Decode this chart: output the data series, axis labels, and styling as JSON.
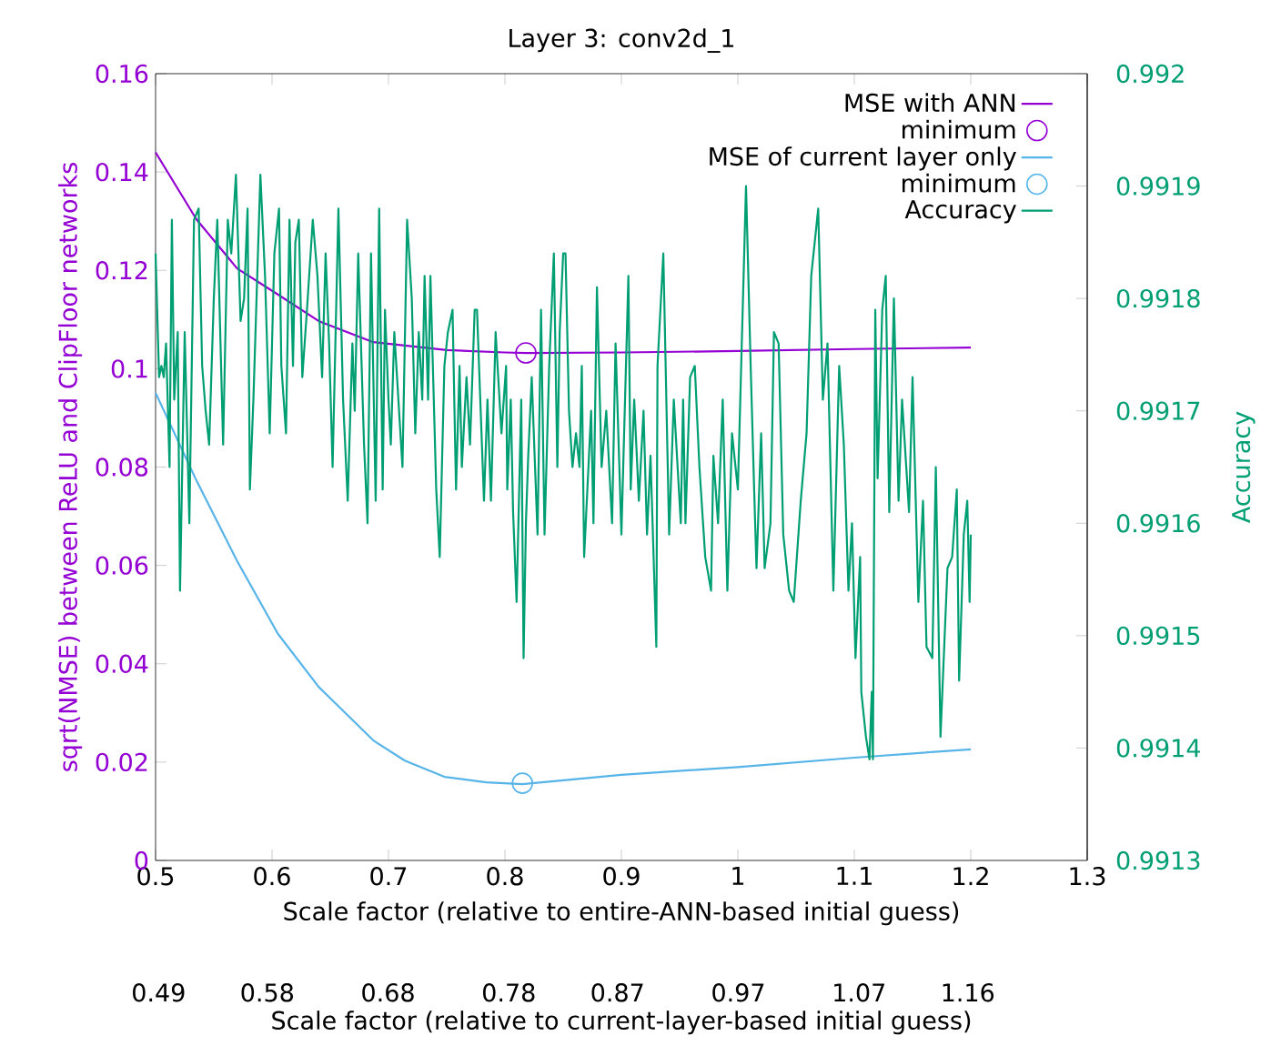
{
  "chart_data": {
    "type": "line",
    "title": "Layer 3: conv2d_1",
    "xlabel": "Scale factor (relative to entire-ANN-based initial guess)",
    "ylabel": "sqrt(NMSE) between ReLU and ClipFloor networks",
    "y2label": "Accuracy",
    "x2label": "Scale factor (relative to current-layer-based initial guess)",
    "xlim": [
      0.5,
      1.3
    ],
    "xticks": [
      0.5,
      0.6,
      0.7,
      0.8,
      0.9,
      1,
      1.1,
      1.2,
      1.3
    ],
    "ylim": [
      0,
      0.16
    ],
    "yticks": [
      0,
      0.02,
      0.04,
      0.06,
      0.08,
      0.1,
      0.12,
      0.14,
      0.16
    ],
    "y2lim": [
      0.9913,
      0.992
    ],
    "y2ticks": [
      0.9913,
      0.9914,
      0.9915,
      0.9916,
      0.9917,
      0.9918,
      0.9919,
      0.992
    ],
    "x2lim": [
      0.4875,
      1.2589
    ],
    "x2ticks": [
      0.49,
      0.58,
      0.68,
      0.78,
      0.87,
      0.97,
      1.07,
      1.16
    ],
    "legend": "top right",
    "grid": false,
    "marker": "none",
    "series": [
      {
        "name": "MSE with ANN",
        "color": "#9400d3",
        "x": [
          0.5,
          0.535,
          0.57,
          0.605,
          0.64,
          0.687,
          0.714,
          0.75,
          0.8,
          0.819,
          0.9,
          1.0,
          1.1,
          1.2
        ],
        "values": [
          0.144,
          0.1304,
          0.1204,
          0.1151,
          0.1097,
          0.1054,
          0.1047,
          0.1038,
          0.1033,
          0.1032,
          0.1033,
          0.1036,
          0.104,
          0.1043
        ]
      },
      {
        "name": "minimum",
        "type": "scatter",
        "marker": "circle",
        "color": "#9400d3",
        "x": [
          0.818
        ],
        "values": [
          0.1032
        ]
      },
      {
        "name": "MSE of current layer only",
        "color": "#56b4e9",
        "x": [
          0.5,
          0.535,
          0.57,
          0.605,
          0.64,
          0.687,
          0.714,
          0.748,
          0.784,
          0.815,
          0.9,
          1.0,
          1.1,
          1.2
        ],
        "values": [
          0.0951,
          0.0773,
          0.0609,
          0.0461,
          0.0353,
          0.0244,
          0.0203,
          0.017,
          0.0159,
          0.0155,
          0.0174,
          0.019,
          0.0209,
          0.0226
        ]
      },
      {
        "name": "minimum",
        "type": "scatter",
        "marker": "circle",
        "color": "#56b4e9",
        "x": [
          0.815
        ],
        "values": [
          0.0157
        ]
      },
      {
        "name": "Accuracy",
        "axis": "y2",
        "color": "#009e73",
        "x": [
          0.5,
          0.503,
          0.505,
          0.507,
          0.509,
          0.512,
          0.514,
          0.516,
          0.519,
          0.521,
          0.525,
          0.529,
          0.533,
          0.537,
          0.54,
          0.543,
          0.546,
          0.55,
          0.553,
          0.558,
          0.562,
          0.565,
          0.569,
          0.573,
          0.576,
          0.579,
          0.581,
          0.584,
          0.59,
          0.594,
          0.598,
          0.602,
          0.606,
          0.608,
          0.612,
          0.615,
          0.618,
          0.62,
          0.623,
          0.626,
          0.63,
          0.635,
          0.639,
          0.643,
          0.646,
          0.649,
          0.652,
          0.657,
          0.661,
          0.665,
          0.669,
          0.671,
          0.674,
          0.679,
          0.682,
          0.685,
          0.689,
          0.692,
          0.695,
          0.697,
          0.7,
          0.702,
          0.705,
          0.712,
          0.716,
          0.72,
          0.723,
          0.726,
          0.729,
          0.731,
          0.734,
          0.736,
          0.741,
          0.744,
          0.748,
          0.751,
          0.755,
          0.758,
          0.761,
          0.763,
          0.767,
          0.77,
          0.774,
          0.776,
          0.782,
          0.785,
          0.788,
          0.792,
          0.797,
          0.801,
          0.802,
          0.805,
          0.807,
          0.81,
          0.812,
          0.814,
          0.816,
          0.818,
          0.82,
          0.823,
          0.828,
          0.831,
          0.834,
          0.838,
          0.842,
          0.845,
          0.847,
          0.85,
          0.852,
          0.855,
          0.858,
          0.861,
          0.864,
          0.866,
          0.868,
          0.874,
          0.876,
          0.879,
          0.883,
          0.887,
          0.892,
          0.895,
          0.9,
          0.906,
          0.908,
          0.911,
          0.915,
          0.919,
          0.922,
          0.925,
          0.93,
          0.931,
          0.936,
          0.941,
          0.945,
          0.951,
          0.953,
          0.955,
          0.959,
          0.963,
          0.967,
          0.972,
          0.977,
          0.979,
          0.983,
          0.987,
          0.991,
          0.995,
          1.0,
          1.007,
          1.011,
          1.014,
          1.016,
          1.02,
          1.023,
          1.028,
          1.031,
          1.035,
          1.039,
          1.044,
          1.048,
          1.054,
          1.059,
          1.063,
          1.069,
          1.073,
          1.077,
          1.082,
          1.087,
          1.091,
          1.095,
          1.098,
          1.101,
          1.105,
          1.106,
          1.11,
          1.113,
          1.115,
          1.116,
          1.118,
          1.12,
          1.124,
          1.127,
          1.13,
          1.134,
          1.138,
          1.141,
          1.147,
          1.15,
          1.155,
          1.159,
          1.162,
          1.167,
          1.17,
          1.174,
          1.18,
          1.184,
          1.188,
          1.19,
          1.194,
          1.197,
          1.199,
          1.2
        ],
        "values": [
          0.99184,
          0.99173,
          0.99174,
          0.99173,
          0.99176,
          0.99165,
          0.99187,
          0.99171,
          0.99177,
          0.99154,
          0.99177,
          0.9916,
          0.99187,
          0.99188,
          0.99174,
          0.9917,
          0.99167,
          0.9918,
          0.99187,
          0.99167,
          0.99187,
          0.99184,
          0.99191,
          0.99178,
          0.9918,
          0.99188,
          0.99163,
          0.99171,
          0.99191,
          0.99182,
          0.99168,
          0.99184,
          0.99188,
          0.99174,
          0.99168,
          0.99187,
          0.99174,
          0.99185,
          0.99187,
          0.99173,
          0.99179,
          0.99187,
          0.99182,
          0.99173,
          0.99184,
          0.99176,
          0.99165,
          0.99188,
          0.99171,
          0.99162,
          0.99176,
          0.9917,
          0.99184,
          0.99167,
          0.9916,
          0.99184,
          0.99162,
          0.99188,
          0.99163,
          0.99179,
          0.99171,
          0.99167,
          0.99177,
          0.99165,
          0.99187,
          0.9918,
          0.99168,
          0.99177,
          0.99171,
          0.99182,
          0.99171,
          0.99182,
          0.99163,
          0.99157,
          0.99174,
          0.99177,
          0.99179,
          0.99163,
          0.99174,
          0.99165,
          0.99173,
          0.99167,
          0.99179,
          0.99179,
          0.99162,
          0.99171,
          0.99162,
          0.99177,
          0.99168,
          0.99174,
          0.99163,
          0.99171,
          0.99161,
          0.99153,
          0.99162,
          0.99171,
          0.99148,
          0.9916,
          0.99166,
          0.99173,
          0.99159,
          0.99179,
          0.99159,
          0.99174,
          0.99184,
          0.99165,
          0.99177,
          0.99184,
          0.99184,
          0.9917,
          0.99165,
          0.99168,
          0.99165,
          0.99174,
          0.99157,
          0.9917,
          0.9916,
          0.99181,
          0.99165,
          0.9917,
          0.9916,
          0.99176,
          0.99159,
          0.99182,
          0.99163,
          0.99171,
          0.99162,
          0.9917,
          0.99159,
          0.99166,
          0.99149,
          0.99174,
          0.99184,
          0.99159,
          0.99171,
          0.9916,
          0.99171,
          0.9916,
          0.99173,
          0.99174,
          0.99165,
          0.99157,
          0.99154,
          0.99166,
          0.9916,
          0.99171,
          0.99154,
          0.99168,
          0.99163,
          0.9919,
          0.99174,
          0.99163,
          0.99156,
          0.99168,
          0.99156,
          0.9916,
          0.99177,
          0.99176,
          0.99159,
          0.99154,
          0.99153,
          0.99162,
          0.99168,
          0.99182,
          0.99188,
          0.99171,
          0.99176,
          0.99154,
          0.99174,
          0.99167,
          0.99154,
          0.9916,
          0.99148,
          0.99157,
          0.99145,
          0.99141,
          0.99139,
          0.99145,
          0.99139,
          0.99179,
          0.99164,
          0.99179,
          0.99182,
          0.99161,
          0.9918,
          0.99162,
          0.99171,
          0.99161,
          0.99173,
          0.99153,
          0.99162,
          0.99149,
          0.99148,
          0.99165,
          0.99141,
          0.99156,
          0.99157,
          0.99163,
          0.99146,
          0.99159,
          0.99162,
          0.99153,
          0.99159
        ]
      }
    ]
  }
}
